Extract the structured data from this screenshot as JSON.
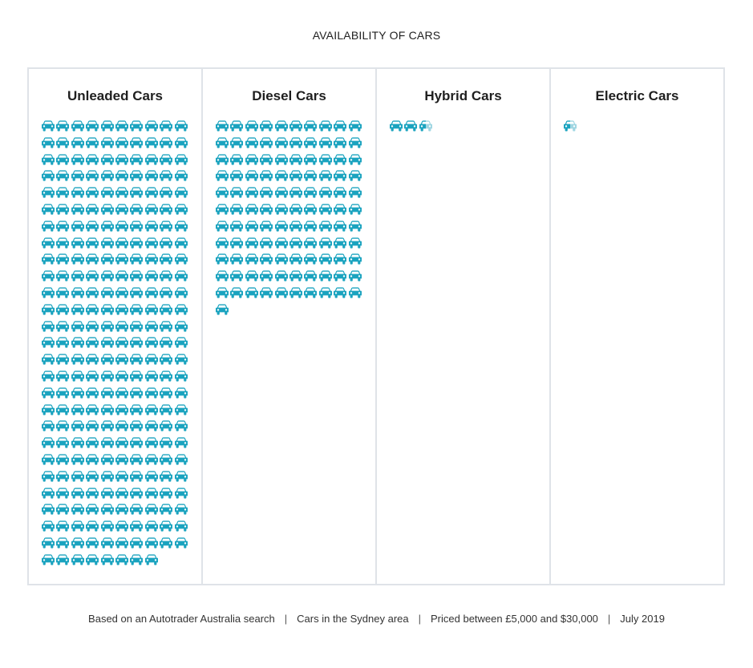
{
  "chart_data": {
    "type": "pictogram",
    "title": "AVAILABILITY OF CARS",
    "icon": "car-icon",
    "icon_color": "#1aa3bf",
    "icon_faded_color": "#9fd6e2",
    "icons_per_row": 10,
    "categories": [
      "Unleaded Cars",
      "Diesel Cars",
      "Hybrid Cars",
      "Electric Cars"
    ],
    "values": [
      268,
      111,
      2.5,
      0.5
    ]
  },
  "footer": {
    "items": [
      "Based on an Autotrader Australia search",
      "Cars in the Sydney area",
      "Priced between £5,000 and $30,000",
      "July 2019"
    ],
    "separator": "|"
  }
}
